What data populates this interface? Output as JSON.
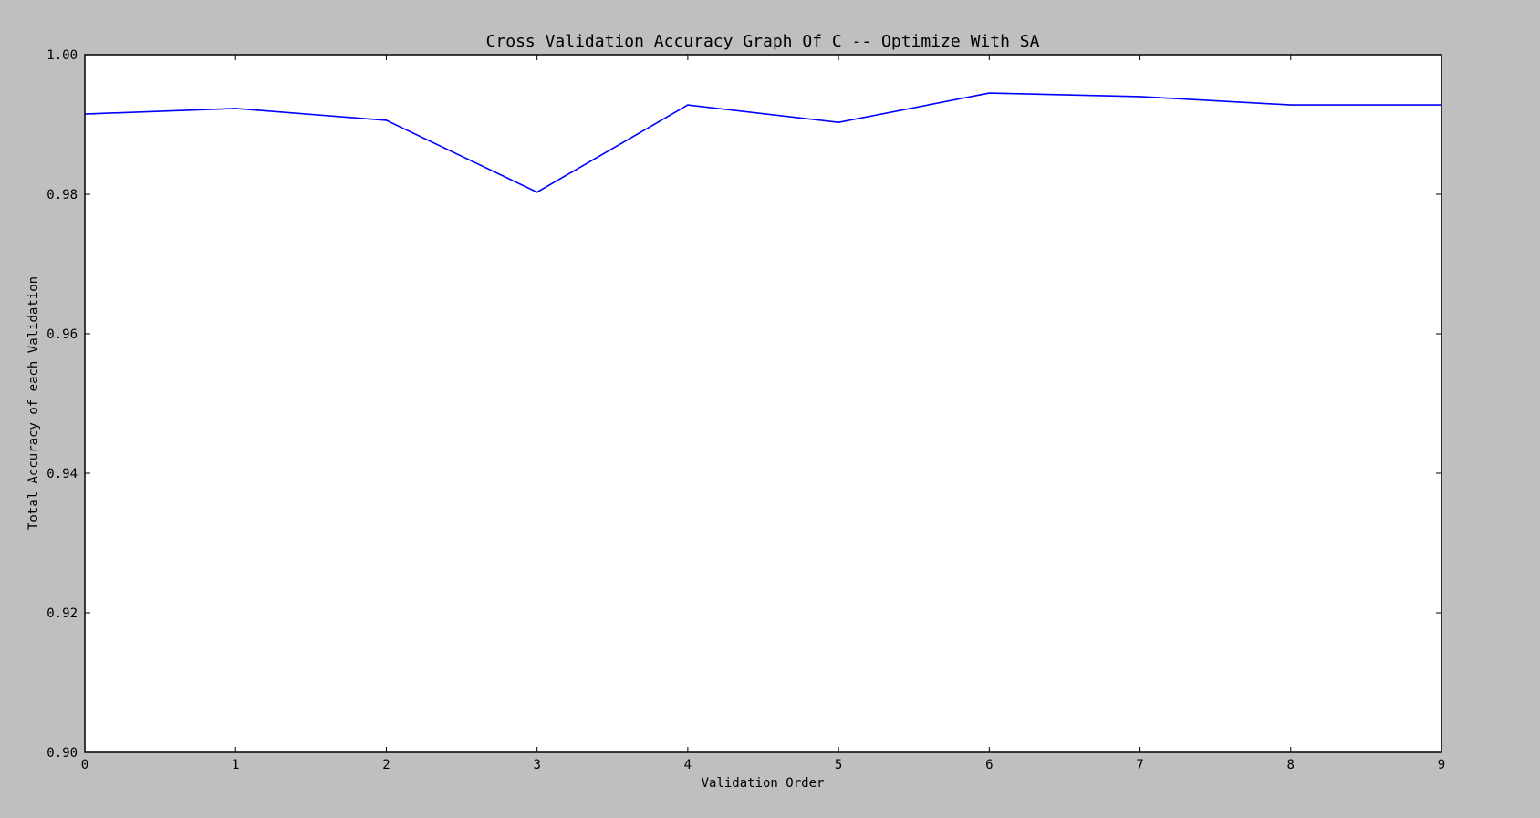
{
  "chart_data": {
    "type": "line",
    "title": "Cross Validation Accuracy Graph Of C -- Optimize With SA",
    "xlabel": "Validation Order",
    "ylabel": "Total Accuracy of each Validation",
    "xlim": [
      0,
      9
    ],
    "ylim": [
      0.9,
      1.0
    ],
    "xticks": [
      "0",
      "1",
      "2",
      "3",
      "4",
      "5",
      "6",
      "7",
      "8",
      "9"
    ],
    "yticks": [
      "0.90",
      "0.92",
      "0.94",
      "0.96",
      "0.98",
      "1.00"
    ],
    "grid": false,
    "series": [
      {
        "color": "#0000ff",
        "x": [
          0,
          1,
          2,
          3,
          4,
          5,
          6,
          7,
          8,
          9
        ],
        "values": [
          0.9915,
          0.9923,
          0.9906,
          0.9803,
          0.9928,
          0.9903,
          0.9945,
          0.994,
          0.9928,
          0.9928
        ]
      }
    ]
  }
}
